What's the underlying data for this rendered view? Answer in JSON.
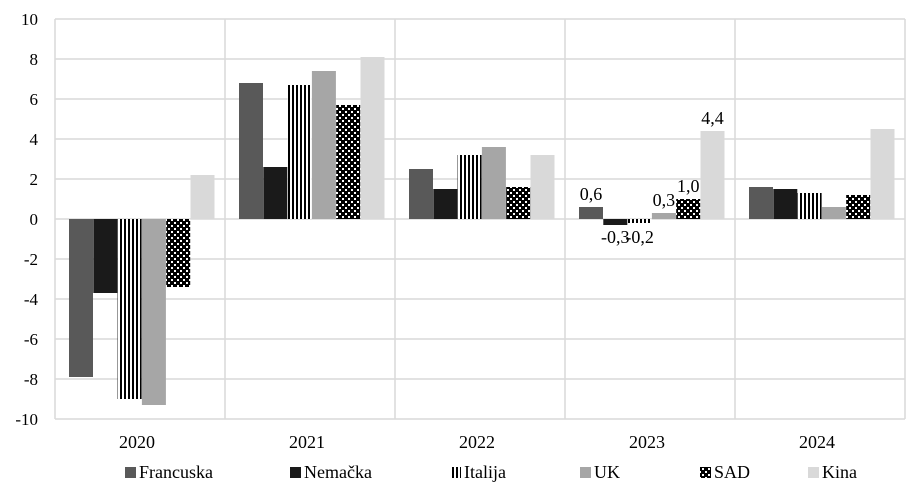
{
  "chart_data": {
    "type": "bar",
    "categories": [
      "2020",
      "2021",
      "2022",
      "2023",
      "2024"
    ],
    "ylim": [
      -10,
      10
    ],
    "yticks": [
      "-10",
      "-8",
      "-6",
      "-4",
      "-2",
      "0",
      "2",
      "4",
      "6",
      "8",
      "10"
    ],
    "grid": true,
    "legend_position": "bottom",
    "series": [
      {
        "name": "Francuska",
        "values": [
          -7.9,
          6.8,
          2.5,
          0.6,
          1.6
        ],
        "color": "#595959",
        "pattern": "solid"
      },
      {
        "name": "Nemačka",
        "values": [
          -3.7,
          2.6,
          1.5,
          -0.3,
          1.5
        ],
        "color": "#1a1a1a",
        "pattern": "solid"
      },
      {
        "name": "Italija",
        "values": [
          -9.0,
          6.7,
          3.2,
          -0.2,
          1.3
        ],
        "color": "#000000",
        "pattern": "vertical-stripes"
      },
      {
        "name": "UK",
        "values": [
          -9.3,
          7.4,
          3.6,
          0.3,
          0.6
        ],
        "color": "#a6a6a6",
        "pattern": "solid"
      },
      {
        "name": "SAD",
        "values": [
          -3.4,
          5.7,
          1.6,
          1.0,
          1.2
        ],
        "color": "#000000",
        "pattern": "checker"
      },
      {
        "name": "Kina",
        "values": [
          2.2,
          8.1,
          3.2,
          4.4,
          4.5
        ],
        "color": "#d9d9d9",
        "pattern": "solid"
      }
    ],
    "data_labels": [
      {
        "category": "2023",
        "series": "Francuska",
        "text": "0,6"
      },
      {
        "category": "2023",
        "series": "Nemačka",
        "text": "-0,3"
      },
      {
        "category": "2023",
        "series": "Italija",
        "text": "-0,2"
      },
      {
        "category": "2023",
        "series": "UK",
        "text": "0,3"
      },
      {
        "category": "2023",
        "series": "SAD",
        "text": "1,0"
      },
      {
        "category": "2023",
        "series": "Kina",
        "text": "4,4"
      }
    ]
  }
}
